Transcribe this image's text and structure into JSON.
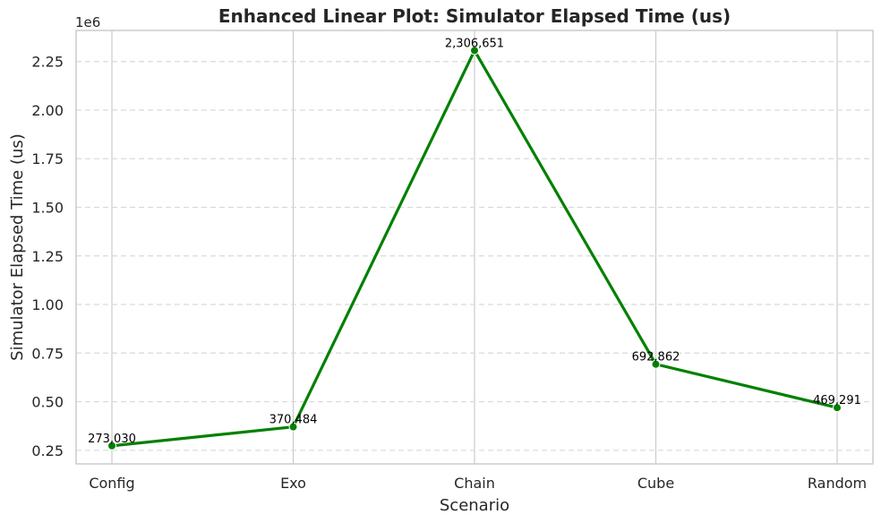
{
  "chart_data": {
    "type": "line",
    "title": "Enhanced Linear Plot: Simulator Elapsed Time (us)",
    "xlabel": "Scenario",
    "ylabel": "Simulator Elapsed Time (us)",
    "y_offset_label": "1e6",
    "categories": [
      "Config",
      "Exo",
      "Chain",
      "Cube",
      "Random"
    ],
    "values": [
      273030,
      370484,
      2306651,
      692862,
      469291
    ],
    "data_labels": [
      "273,030",
      "370,484",
      "2,306,651",
      "692,862",
      "469,291"
    ],
    "ylim": [
      180000,
      2410000
    ],
    "y_ticks": [
      250000,
      500000,
      750000,
      1000000,
      1250000,
      1500000,
      1750000,
      2000000,
      2250000
    ],
    "y_tick_labels": [
      "0.25",
      "0.50",
      "0.75",
      "1.00",
      "1.25",
      "1.50",
      "1.75",
      "2.00",
      "2.25"
    ],
    "grid": true,
    "colors": {
      "line": "#008000",
      "grid": "#d9d9d9",
      "axes": "#cccccc"
    }
  }
}
